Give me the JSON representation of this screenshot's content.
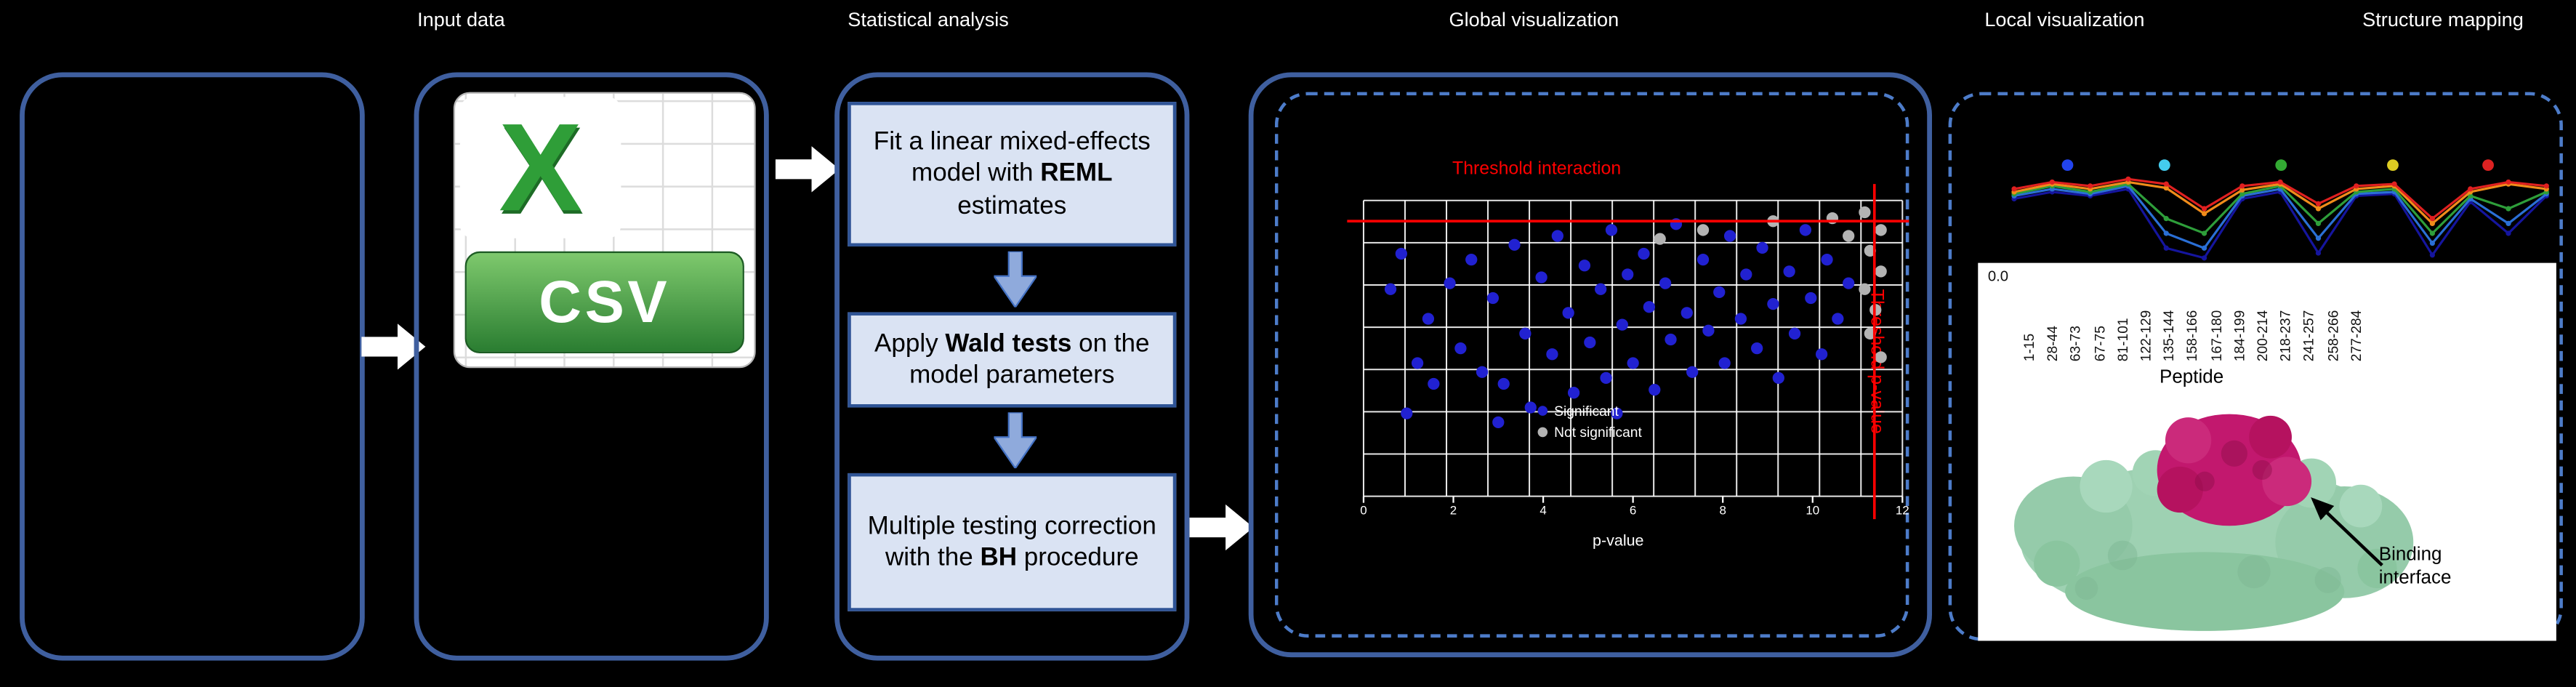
{
  "headers": {
    "input": "Input data",
    "stats": "Statistical analysis",
    "global": "Global visualization",
    "local": "Local visualization",
    "structure": "Structure mapping"
  },
  "csv_icon": {
    "letter": "X",
    "label": "CSV"
  },
  "pipeline": {
    "steps": [
      {
        "pre": "Fit a linear mixed-effects model with ",
        "bold": "REML",
        "post": " estimates"
      },
      {
        "pre": "Apply ",
        "bold": "Wald tests",
        "post": " on the model parameters"
      },
      {
        "pre": "Multiple testing correction with the ",
        "bold": "BH",
        "post": " procedure"
      }
    ]
  },
  "volcano_labels": {
    "threshold_interaction": "Threshold interaction",
    "threshold_pvalue": "Threshold p-value",
    "xlabel": "p-value"
  },
  "uptake_labels": {
    "y_tick": "0.0",
    "xlabel": "Peptide",
    "annotation": "Binding interface"
  },
  "colors": {
    "panel_border": "#3f5f9f",
    "dashed_border": "#4d7cc9",
    "step_fill": "#dae3f3",
    "step_border": "#2f5496",
    "arrow_white": "#ffffff",
    "threshold_red": "#ff0000",
    "csv_green": "#2f9e38",
    "protein_surface": "#9ed1b2",
    "binding_patch": "#c2186e"
  },
  "chart_data": [
    {
      "id": "volcano",
      "type": "scatter",
      "title": "",
      "xlabel": "p-value",
      "xticks": [
        "0",
        "2",
        "4",
        "6",
        "8",
        "10",
        "12"
      ],
      "grid": {
        "cols": 13,
        "rows": 7,
        "on": true
      },
      "thresholds": {
        "interaction_y": 0.07,
        "pvalue_x": 0.948
      },
      "threshold_labels": {
        "interaction": "Threshold interaction",
        "pvalue": "Threshold p-value"
      },
      "legend": [
        {
          "label": "Significant",
          "color": "#2121d1"
        },
        {
          "label": "Not significant",
          "color": "#b3b3b3"
        }
      ],
      "series": [
        {
          "name": "significant",
          "color": "#2121d1",
          "points": [
            [
              0.05,
              0.3
            ],
            [
              0.07,
              0.18
            ],
            [
              0.08,
              0.72
            ],
            [
              0.1,
              0.55
            ],
            [
              0.12,
              0.4
            ],
            [
              0.13,
              0.62
            ],
            [
              0.16,
              0.28
            ],
            [
              0.18,
              0.5
            ],
            [
              0.2,
              0.2
            ],
            [
              0.22,
              0.58
            ],
            [
              0.24,
              0.33
            ],
            [
              0.25,
              0.75
            ],
            [
              0.26,
              0.62
            ],
            [
              0.28,
              0.15
            ],
            [
              0.3,
              0.45
            ],
            [
              0.31,
              0.7
            ],
            [
              0.33,
              0.26
            ],
            [
              0.35,
              0.52
            ],
            [
              0.36,
              0.12
            ],
            [
              0.38,
              0.38
            ],
            [
              0.39,
              0.65
            ],
            [
              0.41,
              0.22
            ],
            [
              0.42,
              0.48
            ],
            [
              0.44,
              0.3
            ],
            [
              0.45,
              0.6
            ],
            [
              0.46,
              0.1
            ],
            [
              0.47,
              0.72
            ],
            [
              0.48,
              0.42
            ],
            [
              0.49,
              0.25
            ],
            [
              0.5,
              0.55
            ],
            [
              0.52,
              0.18
            ],
            [
              0.53,
              0.36
            ],
            [
              0.54,
              0.64
            ],
            [
              0.56,
              0.28
            ],
            [
              0.57,
              0.47
            ],
            [
              0.58,
              0.08
            ],
            [
              0.6,
              0.38
            ],
            [
              0.61,
              0.58
            ],
            [
              0.63,
              0.2
            ],
            [
              0.64,
              0.44
            ],
            [
              0.66,
              0.31
            ],
            [
              0.67,
              0.55
            ],
            [
              0.68,
              0.12
            ],
            [
              0.7,
              0.4
            ],
            [
              0.71,
              0.25
            ],
            [
              0.73,
              0.5
            ],
            [
              0.74,
              0.16
            ],
            [
              0.76,
              0.35
            ],
            [
              0.77,
              0.6
            ],
            [
              0.79,
              0.24
            ],
            [
              0.8,
              0.45
            ],
            [
              0.82,
              0.1
            ],
            [
              0.83,
              0.33
            ],
            [
              0.85,
              0.52
            ],
            [
              0.86,
              0.2
            ],
            [
              0.88,
              0.4
            ],
            [
              0.9,
              0.28
            ]
          ]
        },
        {
          "name": "not_significant",
          "color": "#b3b3b3",
          "points": [
            [
              0.93,
              0.04
            ],
            [
              0.96,
              0.1
            ],
            [
              0.94,
              0.17
            ],
            [
              0.96,
              0.24
            ],
            [
              0.93,
              0.3
            ],
            [
              0.95,
              0.37
            ],
            [
              0.94,
              0.45
            ],
            [
              0.96,
              0.53
            ],
            [
              0.63,
              0.1
            ],
            [
              0.76,
              0.07
            ],
            [
              0.87,
              0.06
            ],
            [
              0.9,
              0.12
            ],
            [
              0.55,
              0.13
            ]
          ]
        }
      ]
    },
    {
      "id": "uptake",
      "type": "line",
      "categories": [
        "1-15",
        "28-44",
        "63-73",
        "67-75",
        "81-101",
        "122-129",
        "135-144",
        "158-166",
        "167-180",
        "184-199",
        "200-214",
        "218-237",
        "241-257",
        "258-266",
        "277-284"
      ],
      "xlabel": "Peptide",
      "ylim": [
        0,
        1
      ],
      "y_tick_label": "0.0",
      "legend_colors": [
        "#2244ee",
        "#44ccee",
        "#33aa33",
        "#ddcc22",
        "#dd2222"
      ],
      "legend_fracs": [
        0.1,
        0.28,
        0.5,
        0.71,
        0.89
      ],
      "series": [
        {
          "name": "t1",
          "color": "#15159e",
          "values": [
            0.65,
            0.72,
            0.68,
            0.75,
            0.15,
            0.05,
            0.65,
            0.72,
            0.1,
            0.68,
            0.7,
            0.08,
            0.62,
            0.3,
            0.68
          ]
        },
        {
          "name": "t2",
          "color": "#2a6fd6",
          "values": [
            0.68,
            0.75,
            0.7,
            0.78,
            0.3,
            0.15,
            0.68,
            0.75,
            0.25,
            0.7,
            0.72,
            0.2,
            0.65,
            0.4,
            0.7
          ]
        },
        {
          "name": "t3",
          "color": "#2e9e3a",
          "values": [
            0.7,
            0.78,
            0.72,
            0.8,
            0.45,
            0.3,
            0.7,
            0.78,
            0.4,
            0.72,
            0.75,
            0.3,
            0.68,
            0.55,
            0.72
          ]
        },
        {
          "name": "t4",
          "color": "#f08c1a",
          "values": [
            0.72,
            0.8,
            0.75,
            0.82,
            0.76,
            0.5,
            0.74,
            0.8,
            0.55,
            0.75,
            0.78,
            0.4,
            0.72,
            0.8,
            0.75
          ]
        },
        {
          "name": "t5",
          "color": "#e02020",
          "values": [
            0.75,
            0.82,
            0.78,
            0.85,
            0.8,
            0.55,
            0.78,
            0.82,
            0.6,
            0.78,
            0.8,
            0.45,
            0.75,
            0.82,
            0.78
          ]
        }
      ]
    }
  ]
}
